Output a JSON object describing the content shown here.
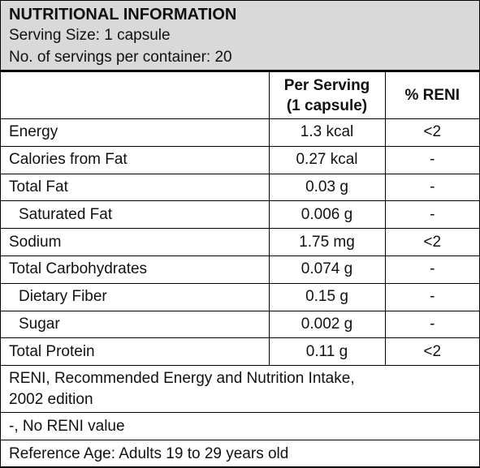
{
  "header": {
    "title": "NUTRITIONAL INFORMATION",
    "serving_size": "Serving Size: 1 capsule",
    "servings_per_container": "No. of servings per container: 20"
  },
  "table": {
    "columns": [
      "",
      "Per Serving\n(1 capsule)",
      "% RENI"
    ],
    "column_header_line1": "Per Serving",
    "column_header_line2": "(1 capsule)",
    "column_header_reni": "% RENI",
    "rows": [
      {
        "nutrient": "Energy",
        "per_serving": "1.3 kcal",
        "reni": "<2",
        "indent": false
      },
      {
        "nutrient": "Calories from Fat",
        "per_serving": "0.27 kcal",
        "reni": "-",
        "indent": false
      },
      {
        "nutrient": "Total Fat",
        "per_serving": "0.03 g",
        "reni": "-",
        "indent": false
      },
      {
        "nutrient": "Saturated Fat",
        "per_serving": "0.006 g",
        "reni": "-",
        "indent": true
      },
      {
        "nutrient": "Sodium",
        "per_serving": "1.75 mg",
        "reni": "<2",
        "indent": false
      },
      {
        "nutrient": "Total Carbohydrates",
        "per_serving": "0.074 g",
        "reni": "-",
        "indent": false
      },
      {
        "nutrient": "Dietary Fiber",
        "per_serving": "0.15 g",
        "reni": "-",
        "indent": true
      },
      {
        "nutrient": "Sugar",
        "per_serving": "0.002 g",
        "reni": "-",
        "indent": true
      },
      {
        "nutrient": "Total Protein",
        "per_serving": "0.11 g",
        "reni": "<2",
        "indent": false
      }
    ]
  },
  "footnotes": {
    "reni_line1": "RENI, Recommended Energy and Nutrition Intake,",
    "reni_line2": "2002 edition",
    "no_value": "-, No RENI value",
    "reference_age": "Reference Age: Adults 19 to 29 years old"
  },
  "colors": {
    "header_background": "#d9d9d9",
    "border": "#000000",
    "text": "#111111"
  }
}
